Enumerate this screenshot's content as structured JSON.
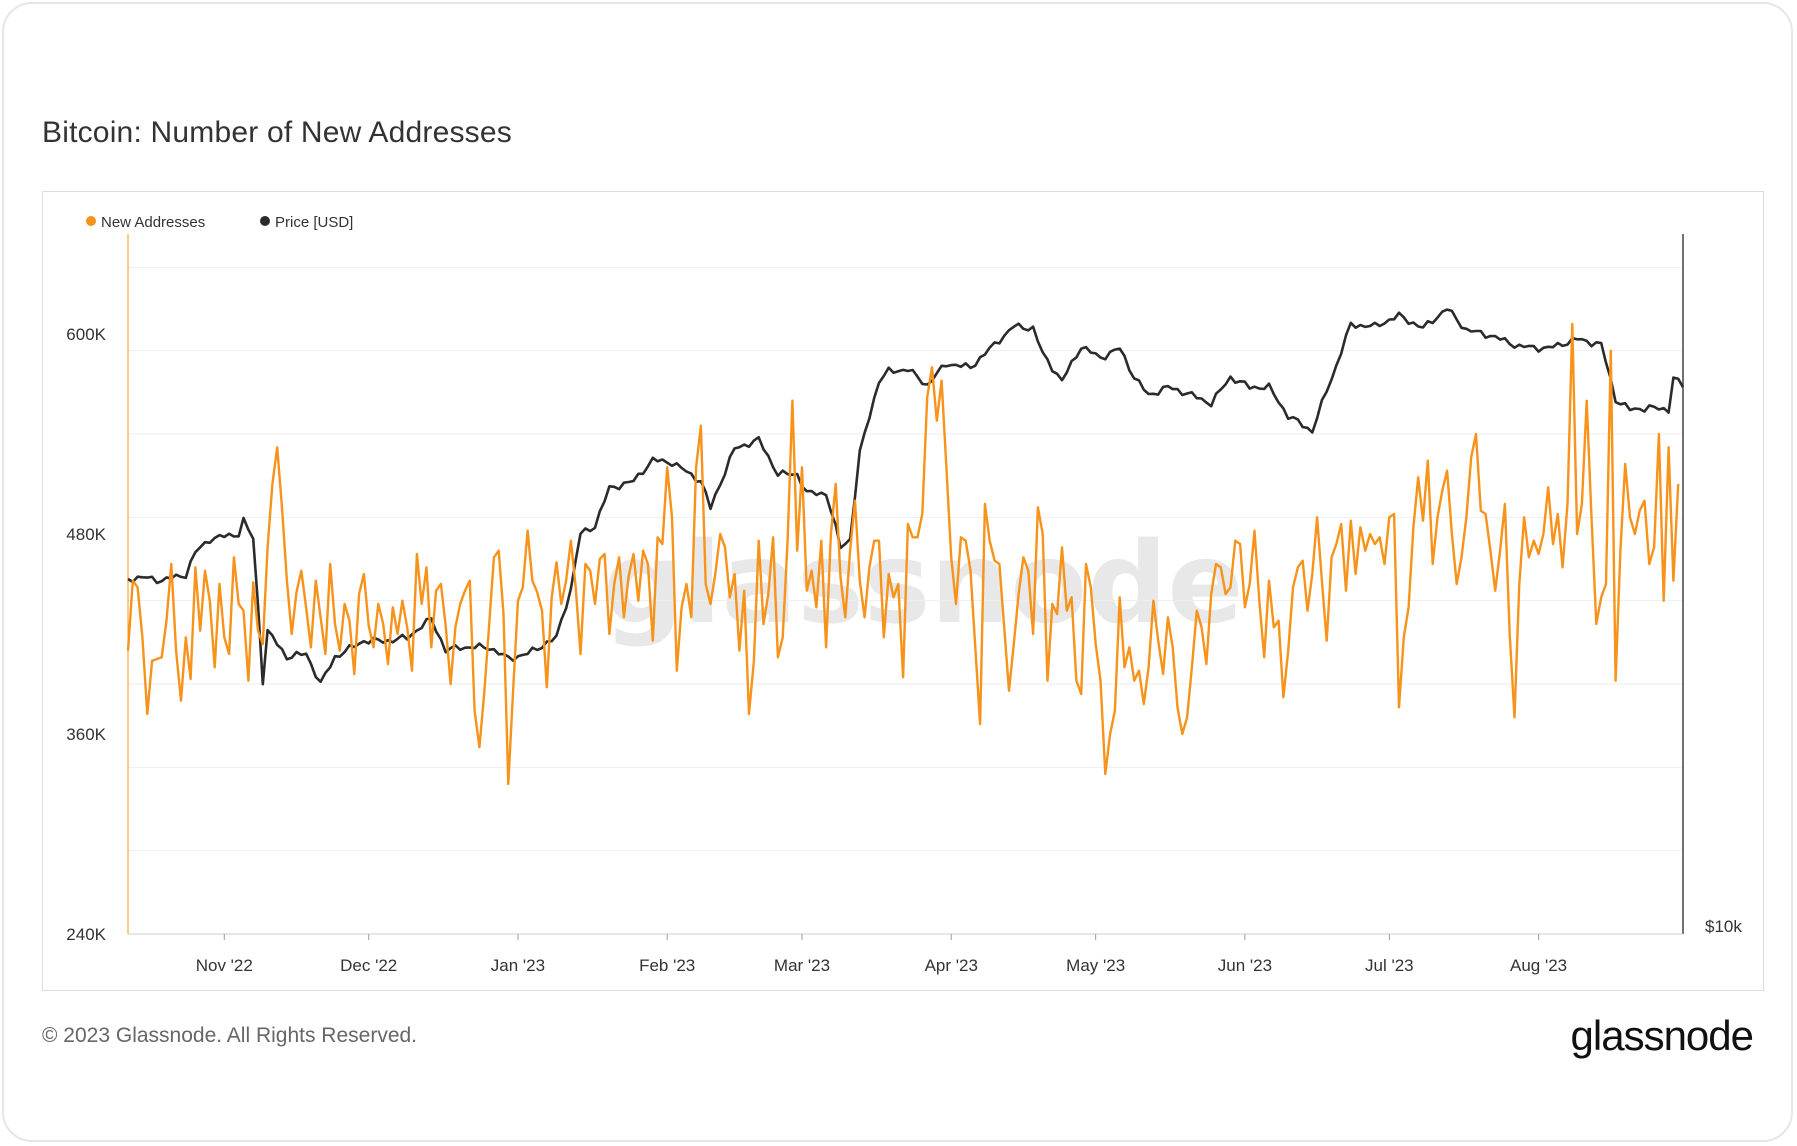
{
  "page": {
    "title": "Bitcoin: Number of New Addresses",
    "copyright": "© 2023 Glassnode. All Rights Reserved.",
    "brand": "glassnode",
    "watermark": "glassnode"
  },
  "colors": {
    "new_addresses": "#f7931a",
    "price": "#2b2b2b",
    "grid": "#eeeeee",
    "axis_text": "#333333"
  },
  "chart_data": {
    "type": "line",
    "title": "Bitcoin: Number of New Addresses",
    "legend": [
      {
        "name": "New Addresses",
        "color": "#f7931a"
      },
      {
        "name": "Price [USD]",
        "color": "#2b2b2b"
      }
    ],
    "legend_position": "top-left",
    "grid": true,
    "x_ticks": [
      "Nov '22",
      "Dec '22",
      "Jan '23",
      "Feb '23",
      "Mar '23",
      "Apr '23",
      "May '23",
      "Jun '23",
      "Jul '23",
      "Aug '23"
    ],
    "x_tick_dates": [
      "2022-11-01",
      "2022-12-01",
      "2023-01-01",
      "2023-02-01",
      "2023-03-01",
      "2023-04-01",
      "2023-05-01",
      "2023-06-01",
      "2023-07-01",
      "2023-08-01"
    ],
    "xlim": [
      "2022-10-12",
      "2023-08-31"
    ],
    "y_left_ticks": [
      "240K",
      "360K",
      "480K",
      "600K"
    ],
    "ylim_left": [
      240000,
      660000
    ],
    "y_right_label": "$10k",
    "price_scale": "log",
    "series": [
      {
        "name": "New Addresses",
        "axis": "left",
        "x_start": "2022-10-12",
        "x_step_days": 1,
        "values": [
          410000,
          452000,
          448000,
          418000,
          372000,
          404000,
          405000,
          406000,
          428000,
          462000,
          410000,
          380000,
          418000,
          393000,
          460000,
          422000,
          458000,
          440000,
          400000,
          450000,
          418000,
          408000,
          466000,
          438000,
          434000,
          392000,
          451000,
          422000,
          414000,
          472000,
          510000,
          532000,
          495000,
          452000,
          420000,
          445000,
          458000,
          436000,
          412000,
          452000,
          430000,
          408000,
          462000,
          426000,
          410000,
          438000,
          428000,
          396000,
          444000,
          456000,
          425000,
          412000,
          438000,
          426000,
          402000,
          436000,
          420000,
          440000,
          424000,
          398000,
          468000,
          438000,
          460000,
          412000,
          446000,
          450000,
          425000,
          390000,
          424000,
          438000,
          446000,
          452000,
          374000,
          352000,
          385000,
          425000,
          466000,
          470000,
          432000,
          330000,
          386000,
          440000,
          448000,
          482000,
          452000,
          445000,
          434000,
          388000,
          442000,
          463000,
          438000,
          452000,
          476000,
          448000,
          408000,
          462000,
          458000,
          438000,
          465000,
          468000,
          420000,
          450000,
          466000,
          430000,
          455000,
          468000,
          440000,
          470000,
          462000,
          416000,
          478000,
          474000,
          520000,
          490000,
          398000,
          436000,
          450000,
          430000,
          520000,
          545000,
          450000,
          438000,
          456000,
          480000,
          472000,
          442000,
          456000,
          410000,
          446000,
          372000,
          404000,
          476000,
          426000,
          444000,
          478000,
          406000,
          418000,
          476000,
          560000,
          470000,
          520000,
          446000,
          458000,
          436000,
          476000,
          412000,
          480000,
          510000,
          454000,
          430000,
          470000,
          500000,
          452000,
          430000,
          460000,
          476000,
          476000,
          418000,
          456000,
          442000,
          450000,
          394000,
          486000,
          478000,
          478000,
          492000,
          562000,
          580000,
          548000,
          572000,
          520000,
          466000,
          438000,
          478000,
          476000,
          458000,
          412000,
          366000,
          498000,
          476000,
          464000,
          462000,
          424000,
          386000,
          414000,
          444000,
          466000,
          458000,
          420000,
          496000,
          480000,
          392000,
          438000,
          432000,
          472000,
          434000,
          442000,
          392000,
          384000,
          462000,
          448000,
          414000,
          392000,
          336000,
          360000,
          374000,
          442000,
          400000,
          412000,
          392000,
          398000,
          378000,
          400000,
          440000,
          416000,
          396000,
          430000,
          412000,
          376000,
          360000,
          370000,
          400000,
          434000,
          424000,
          402000,
          444000,
          462000,
          460000,
          444000,
          448000,
          476000,
          474000,
          436000,
          450000,
          482000,
          440000,
          406000,
          452000,
          424000,
          428000,
          382000,
          410000,
          448000,
          460000,
          464000,
          434000,
          456000,
          490000,
          452000,
          416000,
          466000,
          474000,
          486000,
          446000,
          488000,
          456000,
          484000,
          470000,
          480000,
          474000,
          478000,
          462000,
          490000,
          492000,
          376000,
          418000,
          436000,
          484000,
          514000,
          488000,
          524000,
          462000,
          490000,
          506000,
          518000,
          480000,
          450000,
          466000,
          490000,
          526000,
          540000,
          494000,
          492000,
          470000,
          446000,
          470000,
          498000,
          420000,
          370000,
          450000,
          490000,
          466000,
          476000,
          468000,
          480000,
          508000,
          474000,
          492000,
          460000,
          498000,
          606000,
          480000,
          498000,
          560000,
          490000,
          426000,
          442000,
          450000,
          590000,
          392000,
          470000,
          522000,
          490000,
          480000,
          494000,
          500000,
          462000,
          472000,
          540000,
          440000,
          532000,
          452000,
          510000
        ]
      },
      {
        "name": "Price [USD]",
        "axis": "right",
        "x_start": "2022-10-12",
        "x_step_days": 1,
        "keypoints": [
          [
            "2022-10-12",
            19150
          ],
          [
            "2022-10-15",
            19200
          ],
          [
            "2022-10-19",
            19100
          ],
          [
            "2022-10-24",
            19300
          ],
          [
            "2022-10-26",
            20100
          ],
          [
            "2022-10-29",
            20600
          ],
          [
            "2022-11-04",
            20800
          ],
          [
            "2022-11-05",
            21300
          ],
          [
            "2022-11-07",
            20600
          ],
          [
            "2022-11-09",
            15900
          ],
          [
            "2022-11-10",
            17400
          ],
          [
            "2022-11-14",
            16600
          ],
          [
            "2022-11-18",
            16700
          ],
          [
            "2022-11-21",
            15800
          ],
          [
            "2022-11-24",
            16600
          ],
          [
            "2022-11-30",
            17100
          ],
          [
            "2022-12-05",
            17100
          ],
          [
            "2022-12-09",
            17200
          ],
          [
            "2022-12-14",
            17800
          ],
          [
            "2022-12-17",
            16800
          ],
          [
            "2022-12-20",
            16900
          ],
          [
            "2022-12-26",
            16900
          ],
          [
            "2022-12-30",
            16550
          ],
          [
            "2023-01-03",
            16700
          ],
          [
            "2023-01-06",
            16950
          ],
          [
            "2023-01-09",
            17200
          ],
          [
            "2023-01-12",
            18800
          ],
          [
            "2023-01-14",
            20800
          ],
          [
            "2023-01-17",
            21100
          ],
          [
            "2023-01-20",
            22600
          ],
          [
            "2023-01-25",
            22900
          ],
          [
            "2023-01-29",
            23800
          ],
          [
            "2023-02-02",
            23700
          ],
          [
            "2023-02-08",
            22900
          ],
          [
            "2023-02-10",
            21800
          ],
          [
            "2023-02-15",
            24300
          ],
          [
            "2023-02-20",
            24700
          ],
          [
            "2023-02-24",
            23200
          ],
          [
            "2023-02-28",
            23200
          ],
          [
            "2023-03-02",
            22400
          ],
          [
            "2023-03-06",
            22400
          ],
          [
            "2023-03-09",
            20300
          ],
          [
            "2023-03-11",
            20600
          ],
          [
            "2023-03-13",
            24100
          ],
          [
            "2023-03-17",
            27500
          ],
          [
            "2023-03-19",
            28000
          ],
          [
            "2023-03-23",
            28100
          ],
          [
            "2023-03-27",
            27300
          ],
          [
            "2023-03-31",
            28400
          ],
          [
            "2023-04-05",
            28200
          ],
          [
            "2023-04-10",
            29400
          ],
          [
            "2023-04-14",
            30400
          ],
          [
            "2023-04-18",
            30300
          ],
          [
            "2023-04-20",
            28900
          ],
          [
            "2023-04-24",
            27500
          ],
          [
            "2023-04-28",
            29300
          ],
          [
            "2023-05-02",
            28700
          ],
          [
            "2023-05-06",
            29200
          ],
          [
            "2023-05-09",
            27700
          ],
          [
            "2023-05-12",
            26800
          ],
          [
            "2023-05-16",
            27200
          ],
          [
            "2023-05-20",
            26900
          ],
          [
            "2023-05-25",
            26400
          ],
          [
            "2023-05-29",
            27700
          ],
          [
            "2023-06-02",
            27200
          ],
          [
            "2023-06-06",
            27200
          ],
          [
            "2023-06-10",
            25800
          ],
          [
            "2023-06-15",
            25100
          ],
          [
            "2023-06-20",
            28300
          ],
          [
            "2023-06-23",
            30500
          ],
          [
            "2023-06-28",
            30400
          ],
          [
            "2023-07-03",
            31000
          ],
          [
            "2023-07-08",
            30300
          ],
          [
            "2023-07-13",
            31400
          ],
          [
            "2023-07-17",
            30200
          ],
          [
            "2023-07-22",
            29900
          ],
          [
            "2023-07-28",
            29300
          ],
          [
            "2023-08-03",
            29200
          ],
          [
            "2023-08-09",
            29700
          ],
          [
            "2023-08-14",
            29400
          ],
          [
            "2023-08-17",
            26600
          ],
          [
            "2023-08-20",
            26100
          ],
          [
            "2023-08-24",
            26200
          ],
          [
            "2023-08-28",
            26100
          ],
          [
            "2023-08-29",
            27700
          ],
          [
            "2023-08-31",
            27200
          ]
        ]
      }
    ]
  }
}
